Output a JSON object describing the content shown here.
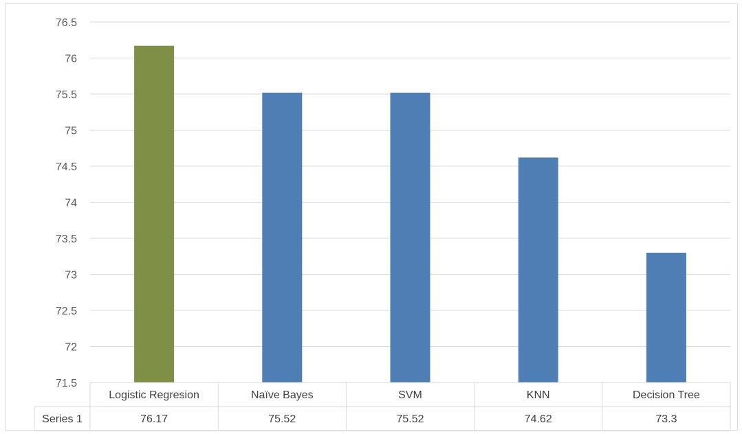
{
  "chart_data": {
    "type": "bar",
    "categories": [
      "Logistic Regresion",
      "Naïve Bayes",
      "SVM",
      "KNN",
      "Decision Tree"
    ],
    "series": [
      {
        "name": "Series 1",
        "values": [
          76.17,
          75.52,
          75.52,
          74.62,
          73.3
        ]
      }
    ],
    "bar_colors": [
      "#7f8f45",
      "#4f7eb5",
      "#4f7eb5",
      "#4f7eb5",
      "#4f7eb5"
    ],
    "ylim": [
      71.5,
      76.5
    ],
    "yticks": [
      "71.5",
      "72",
      "72.5",
      "73",
      "73.5",
      "74",
      "74.5",
      "75",
      "75.5",
      "76",
      "76.5"
    ],
    "ytick_values": [
      71.5,
      72,
      72.5,
      73,
      73.5,
      74,
      74.5,
      75,
      75.5,
      76,
      76.5
    ],
    "table_values": [
      "76.17",
      "75.52",
      "75.52",
      "74.62",
      "73.3"
    ],
    "grid": true,
    "data_table": true,
    "gridline_color": "#d9d9d9"
  }
}
